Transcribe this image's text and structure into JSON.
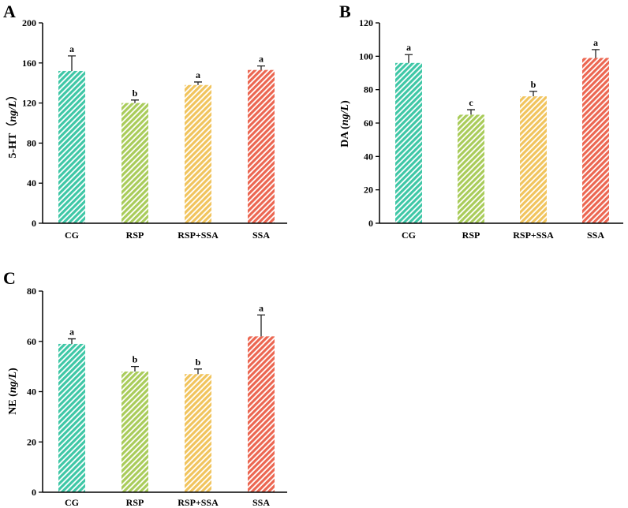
{
  "colors": {
    "CG": "#3ec7a6",
    "RSP": "#a9cc5a",
    "RSP+SSA": "#f1c45d",
    "SSA": "#ec6651"
  },
  "chart_data": [
    {
      "panel": "A",
      "type": "bar",
      "categories": [
        "CG",
        "RSP",
        "RSP+SSA",
        "SSA"
      ],
      "values": [
        152,
        120,
        138,
        153
      ],
      "errors": [
        15,
        3,
        3,
        4
      ],
      "significance": [
        "a",
        "b",
        "a",
        "a"
      ],
      "ylabel_prefix": "5-HT（",
      "ylabel_unit": "ng/L",
      "ylabel_suffix": "）",
      "ylim": [
        0,
        200
      ],
      "yticks": [
        0,
        40,
        80,
        120,
        160,
        200
      ],
      "grid": false,
      "pattern": "diagonal-hatch"
    },
    {
      "panel": "B",
      "type": "bar",
      "categories": [
        "CG",
        "RSP",
        "RSP+SSA",
        "SSA"
      ],
      "values": [
        96,
        65,
        76,
        99
      ],
      "errors": [
        5,
        3,
        3,
        5
      ],
      "significance": [
        "a",
        "c",
        "b",
        "a"
      ],
      "ylabel_prefix": "DA (",
      "ylabel_unit": "ng/L",
      "ylabel_suffix": ")",
      "ylim": [
        0,
        120
      ],
      "yticks": [
        0,
        20,
        40,
        60,
        80,
        100,
        120
      ],
      "grid": false,
      "pattern": "diagonal-hatch"
    },
    {
      "panel": "C",
      "type": "bar",
      "categories": [
        "CG",
        "RSP",
        "RSP+SSA",
        "SSA"
      ],
      "values": [
        59,
        48,
        47,
        62
      ],
      "errors": [
        2,
        2,
        2,
        8.5
      ],
      "significance": [
        "a",
        "b",
        "b",
        "a"
      ],
      "ylabel_prefix": "NE (",
      "ylabel_unit": "ng/L",
      "ylabel_suffix": ")",
      "ylim": [
        0,
        80
      ],
      "yticks": [
        0,
        20,
        40,
        60,
        80
      ],
      "grid": false,
      "pattern": "diagonal-hatch"
    }
  ]
}
